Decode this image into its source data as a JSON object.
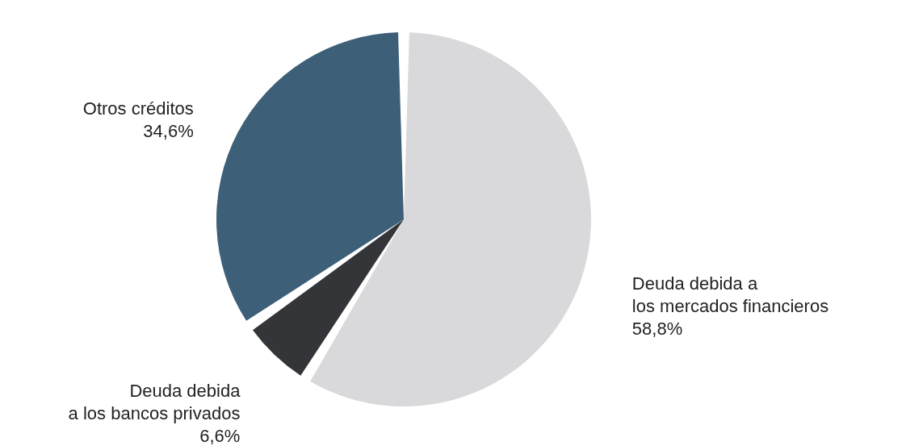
{
  "chart_data": {
    "type": "pie",
    "categories": [
      "Deuda debida a\nlos mercados financieros",
      "Deuda debida\na los bancos privados",
      "Otros créditos"
    ],
    "values": [
      58.8,
      6.6,
      34.6
    ],
    "value_labels": [
      "58,8%",
      "6,6%",
      "34,6%"
    ],
    "colors": [
      "#d9d9db",
      "#333538",
      "#3d5f78"
    ]
  }
}
